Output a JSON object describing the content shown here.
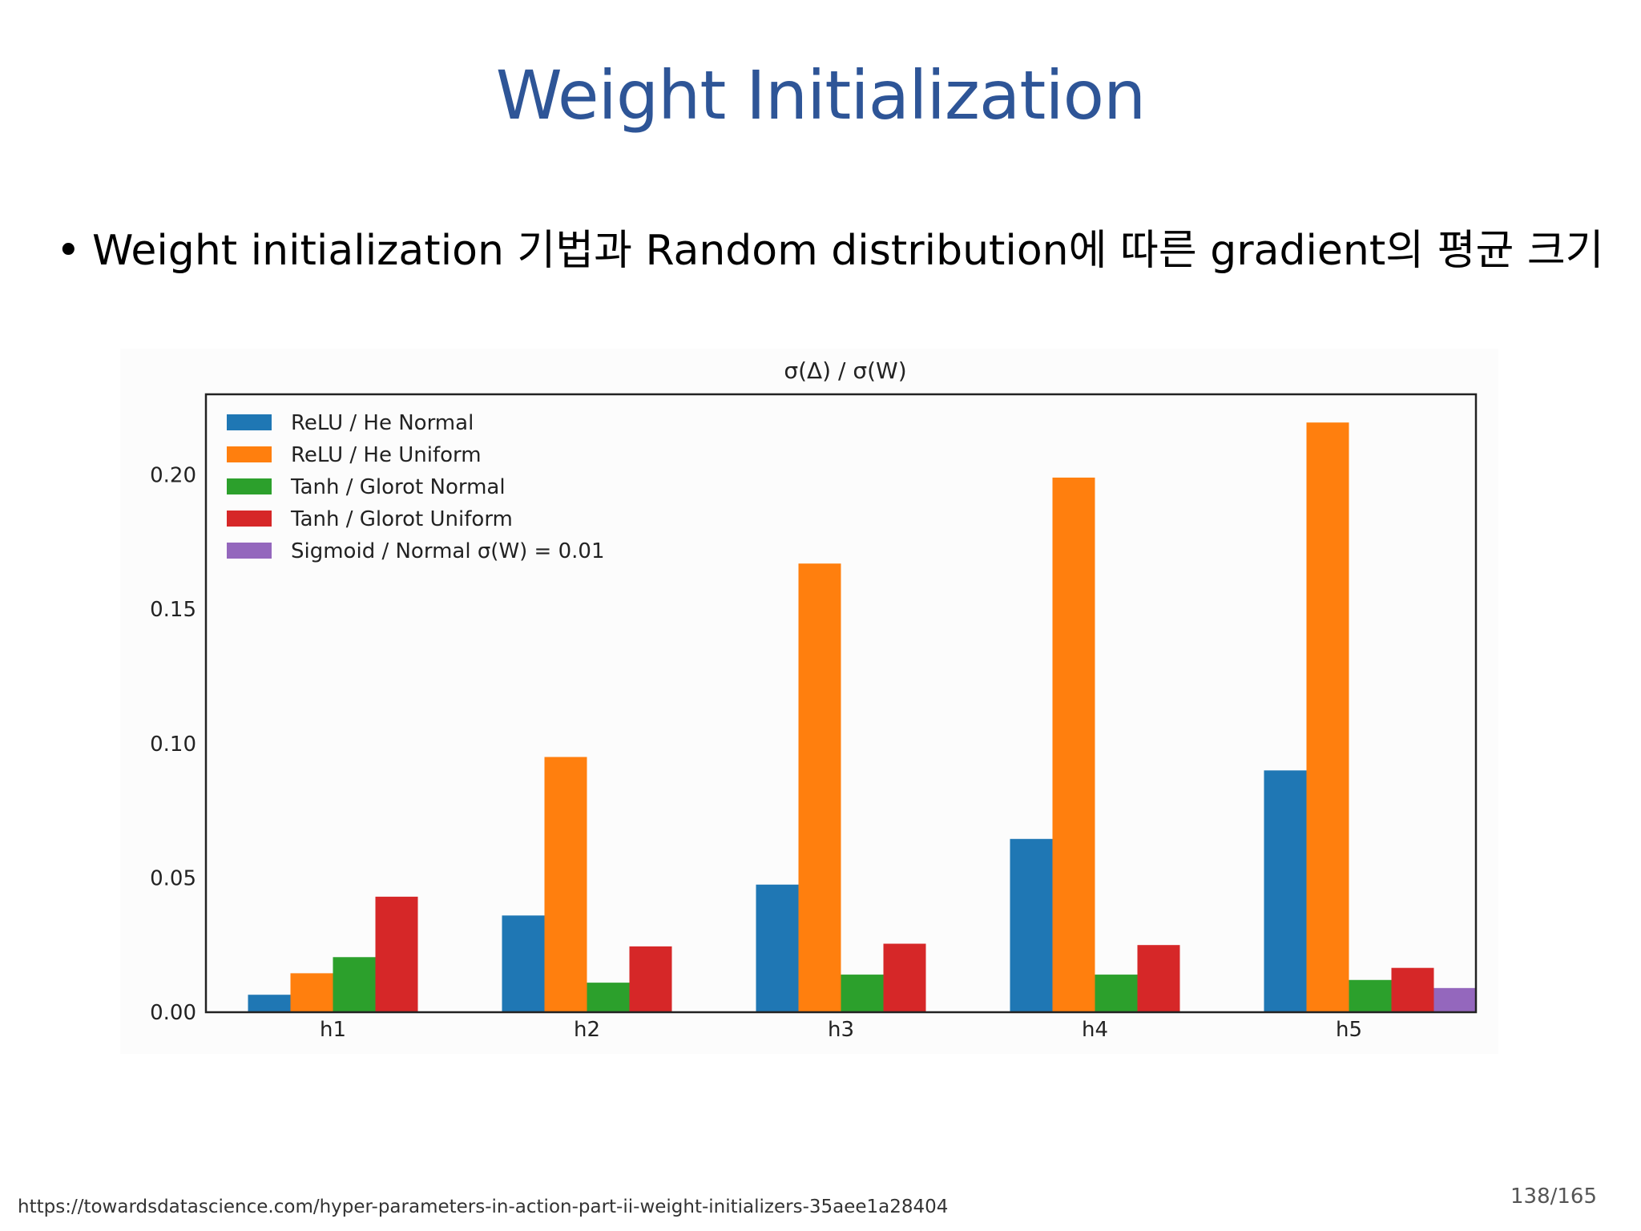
{
  "slide": {
    "title": "Weight Initialization",
    "bullet_text": "Weight initialization 기법과 Random distribution에 따른 gradient의 평균 크기",
    "source_url": "https://towardsdatascience.com/hyper-parameters-in-action-part-ii-weight-initializers-35aee1a28404",
    "page_number": "138/165"
  },
  "chart_data": {
    "type": "bar",
    "title": "σ(Δ) / σ(W)",
    "xlabel": "",
    "ylabel": "",
    "categories": [
      "h1",
      "h2",
      "h3",
      "h4",
      "h5"
    ],
    "ylim": [
      0,
      0.23
    ],
    "yticks": [
      "0.00",
      "0.05",
      "0.10",
      "0.15",
      "0.20"
    ],
    "legend_position": "top-left",
    "grid": false,
    "series": [
      {
        "name": "ReLU / He Normal",
        "color": "#1f77b4",
        "values": [
          0.0065,
          0.036,
          0.0475,
          0.0645,
          0.09
        ]
      },
      {
        "name": "ReLU / He Uniform",
        "color": "#ff7f0e",
        "values": [
          0.0145,
          0.095,
          0.167,
          0.199,
          0.2195
        ]
      },
      {
        "name": "Tanh / Glorot Normal",
        "color": "#2ca02c",
        "values": [
          0.0205,
          0.011,
          0.014,
          0.014,
          0.012
        ]
      },
      {
        "name": "Tanh / Glorot Uniform",
        "color": "#d62728",
        "values": [
          0.043,
          0.0245,
          0.0255,
          0.025,
          0.0165
        ]
      },
      {
        "name": "Sigmoid / Normal σ(W) = 0.01",
        "color": "#9467bd",
        "values": [
          0,
          0,
          0,
          0,
          0.009
        ]
      }
    ]
  }
}
